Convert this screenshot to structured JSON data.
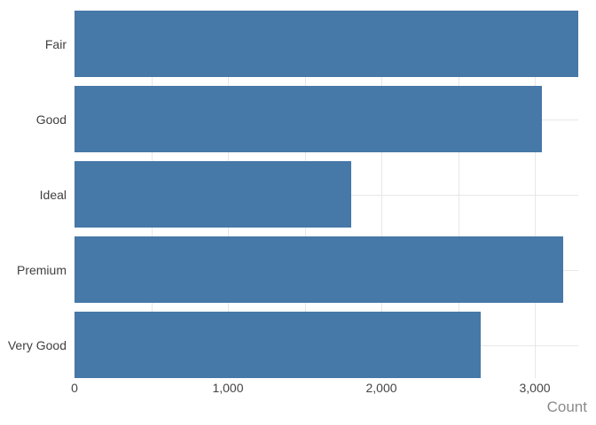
{
  "chart_data": {
    "type": "bar",
    "orientation": "horizontal",
    "title": "",
    "xlabel": "Count",
    "ylabel": "",
    "categories": [
      "Fair",
      "Good",
      "Ideal",
      "Premium",
      "Very Good"
    ],
    "values": [
      3283,
      3046,
      1803,
      3185,
      2647
    ],
    "xlim": [
      0,
      3283
    ],
    "x_ticks": [
      0,
      1000,
      2000,
      3000
    ],
    "x_tick_labels": [
      "0",
      "1,000",
      "2,000",
      "3,000"
    ],
    "x_gridline_values": [
      500,
      1000,
      1500,
      2000,
      2500,
      3000
    ],
    "grid": true,
    "legend": false,
    "colors": {
      "bar": "#4678a8",
      "gridline": "#e7e7e7",
      "category_label": "#404040",
      "tick_label": "#444444",
      "axis_title": "#8a8a8a",
      "background": "#ffffff"
    }
  }
}
